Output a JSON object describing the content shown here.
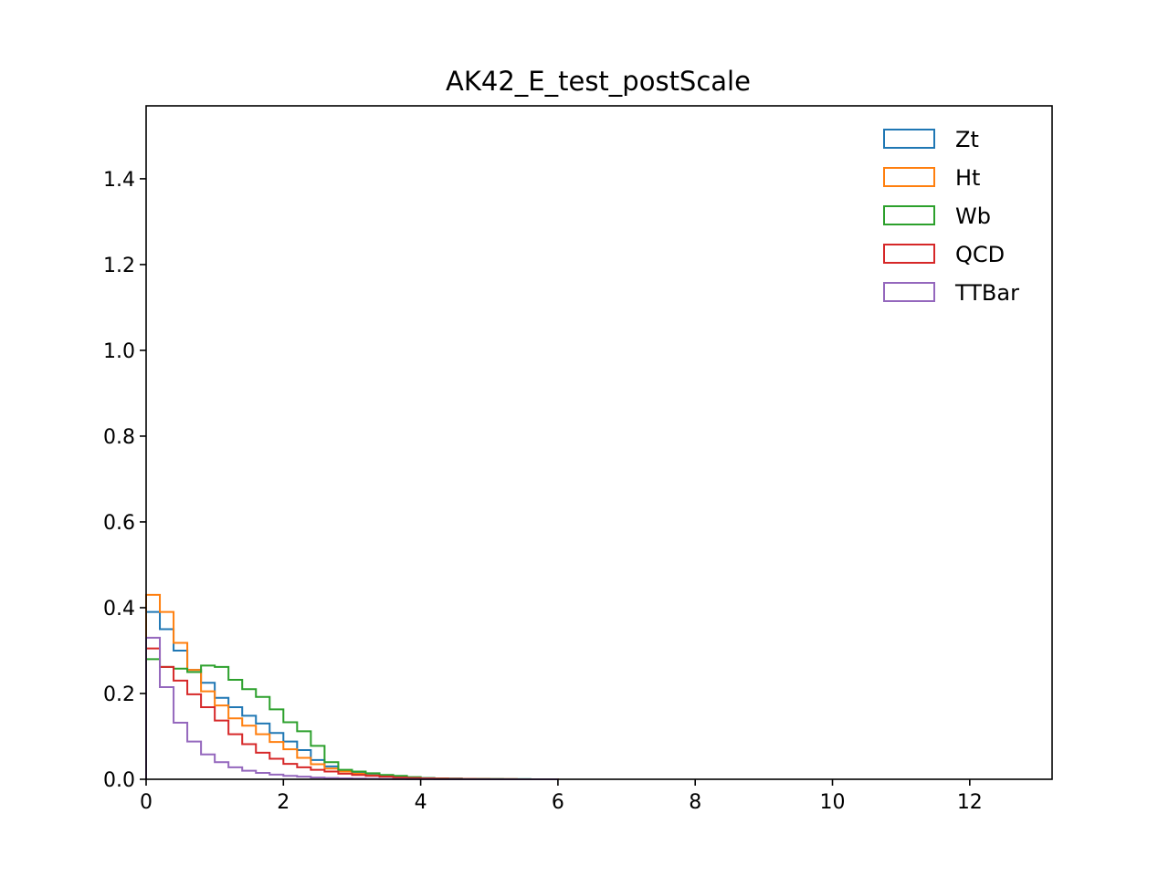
{
  "chart_data": {
    "type": "histogram-step",
    "title": "AK42_E_test_postScale",
    "xlabel": "",
    "ylabel": "",
    "xlim": [
      0,
      13.2
    ],
    "ylim": [
      0,
      1.57
    ],
    "x_ticks": [
      0,
      2,
      4,
      6,
      8,
      10,
      12
    ],
    "y_ticks": [
      0.0,
      0.2,
      0.4,
      0.6,
      0.8,
      1.0,
      1.2,
      1.4
    ],
    "x_tick_labels": [
      "0",
      "2",
      "4",
      "6",
      "8",
      "10",
      "12"
    ],
    "y_tick_labels": [
      "0.0",
      "0.2",
      "0.4",
      "0.6",
      "0.8",
      "1.0",
      "1.2",
      "1.4"
    ],
    "bin_width": 0.2,
    "grid": false,
    "legend_position": "top-right",
    "series": [
      {
        "name": "Zt",
        "color": "#1f77b4",
        "values": [
          0.39,
          0.35,
          0.3,
          0.255,
          0.225,
          0.19,
          0.168,
          0.148,
          0.13,
          0.108,
          0.088,
          0.068,
          0.045,
          0.03,
          0.02,
          0.015,
          0.012,
          0.009,
          0.006,
          0.004,
          0.003,
          0.002,
          0.0015,
          0.001,
          0.0007,
          0.0005,
          0.0003,
          0.0002,
          0.0001,
          0.0001
        ]
      },
      {
        "name": "Ht",
        "color": "#ff7f0e",
        "values": [
          0.43,
          0.39,
          0.318,
          0.255,
          0.205,
          0.172,
          0.142,
          0.125,
          0.105,
          0.087,
          0.07,
          0.05,
          0.035,
          0.025,
          0.018,
          0.013,
          0.009,
          0.007,
          0.005,
          0.003,
          0.002,
          0.0015,
          0.001,
          0.0007,
          0.0005,
          0.0003,
          0.0002,
          0.0001,
          0.0001,
          0.0001
        ]
      },
      {
        "name": "Wb",
        "color": "#2ca02c",
        "values": [
          0.28,
          0.262,
          0.258,
          0.25,
          0.265,
          0.262,
          0.232,
          0.21,
          0.192,
          0.163,
          0.133,
          0.112,
          0.078,
          0.04,
          0.022,
          0.018,
          0.014,
          0.01,
          0.008,
          0.005,
          0.003,
          0.002,
          0.0015,
          0.001,
          0.0007,
          0.0005,
          0.0003,
          0.0002,
          0.0001,
          0.0001
        ]
      },
      {
        "name": "QCD",
        "color": "#d62728",
        "values": [
          0.305,
          0.262,
          0.23,
          0.198,
          0.168,
          0.137,
          0.105,
          0.082,
          0.062,
          0.048,
          0.036,
          0.028,
          0.022,
          0.018,
          0.013,
          0.01,
          0.008,
          0.006,
          0.004,
          0.003,
          0.002,
          0.0015,
          0.001,
          0.0007,
          0.0005,
          0.0003,
          0.0002,
          0.0001,
          0.0001,
          0.0001
        ]
      },
      {
        "name": "TTBar",
        "color": "#9467bd",
        "values": [
          0.33,
          0.215,
          0.132,
          0.088,
          0.058,
          0.04,
          0.028,
          0.02,
          0.015,
          0.011,
          0.008,
          0.006,
          0.004,
          0.003,
          0.002,
          0.0015,
          0.001,
          0.0007,
          0.0005,
          0.0003,
          0.0002,
          0.0001,
          0.0001,
          0.0001,
          0.0,
          0.0,
          0.0,
          0.0,
          0.0,
          0.0
        ]
      }
    ]
  }
}
